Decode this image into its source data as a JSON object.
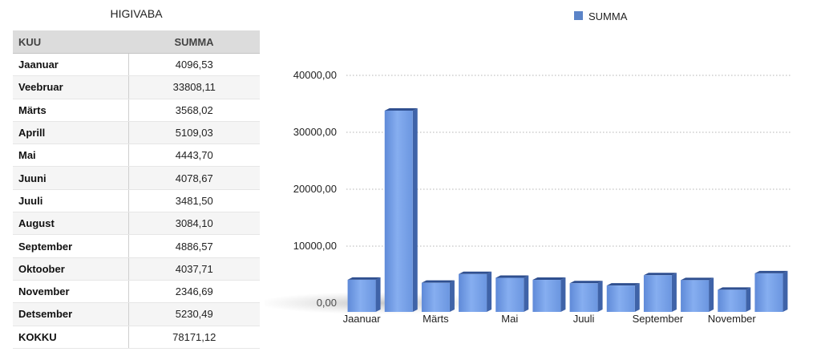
{
  "table": {
    "title": "HIGIVABA",
    "columns": {
      "month": "KUU",
      "sum": "SUMMA"
    },
    "rows": [
      {
        "month": "Jaanuar",
        "sum": "4096,53"
      },
      {
        "month": "Veebruar",
        "sum": "33808,11"
      },
      {
        "month": "Märts",
        "sum": "3568,02"
      },
      {
        "month": "Aprill",
        "sum": "5109,03"
      },
      {
        "month": "Mai",
        "sum": "4443,70"
      },
      {
        "month": "Juuni",
        "sum": "4078,67"
      },
      {
        "month": "Juuli",
        "sum": "3481,50"
      },
      {
        "month": "August",
        "sum": "3084,10"
      },
      {
        "month": "September",
        "sum": "4886,57"
      },
      {
        "month": "Oktoober",
        "sum": "4037,71"
      },
      {
        "month": "November",
        "sum": "2346,69"
      },
      {
        "month": "Detsember",
        "sum": "5230,49"
      }
    ],
    "total": {
      "month": "KOKKU",
      "sum": "78171,12"
    }
  },
  "chart_data": {
    "type": "bar",
    "categories": [
      "Jaanuar",
      "Veebruar",
      "Märts",
      "Aprill",
      "Mai",
      "Juuni",
      "Juuli",
      "August",
      "September",
      "Oktoober",
      "November",
      "Detsember"
    ],
    "shown_category_labels": [
      "Jaanuar",
      "Märts",
      "Mai",
      "Juuli",
      "September",
      "November"
    ],
    "series": [
      {
        "name": "SUMMA",
        "values": [
          4096.53,
          33808.11,
          3568.02,
          5109.03,
          4443.7,
          4078.67,
          3481.5,
          3084.1,
          4886.57,
          4037.71,
          2346.69,
          5230.49
        ]
      }
    ],
    "yticks": [
      "0,00",
      "10000,00",
      "20000,00",
      "30000,00",
      "40000,00"
    ],
    "ylim": [
      0,
      40000
    ],
    "grid": true,
    "legend": "top",
    "bar_color": "#6f9be3"
  }
}
